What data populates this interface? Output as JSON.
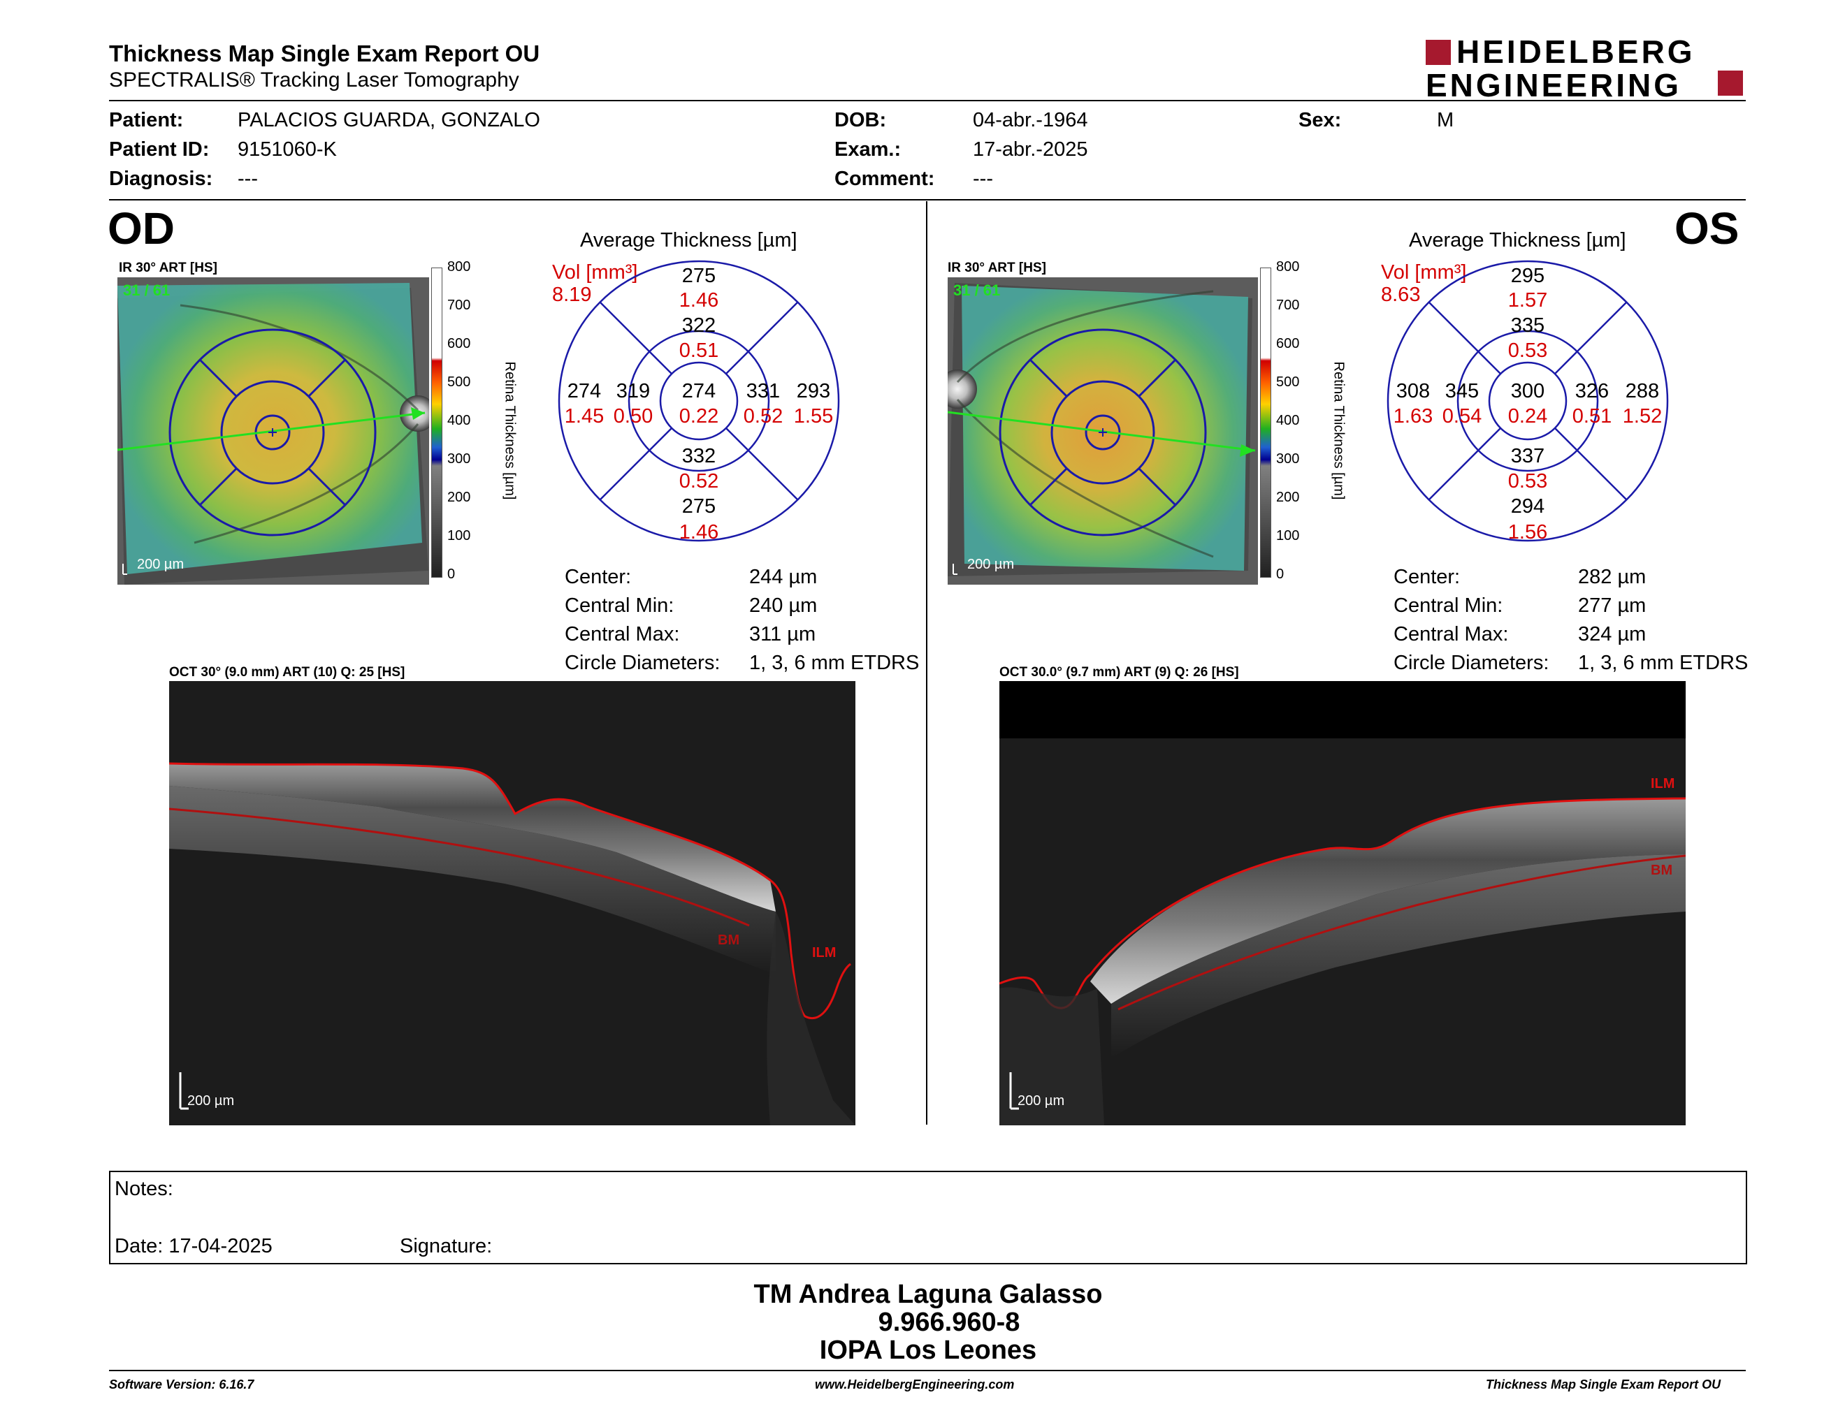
{
  "header": {
    "title": "Thickness Map Single Exam Report OU",
    "subtitle": "SPECTRALIS® Tracking Laser Tomography",
    "logo_line1": "HEIDELBERG",
    "logo_line2": "ENGINEERING",
    "logo_color": "#a6192e"
  },
  "patient": {
    "patient_label": "Patient:",
    "patient_value": "PALACIOS GUARDA, GONZALO",
    "id_label": "Patient ID:",
    "id_value": "9151060-K",
    "diagnosis_label": "Diagnosis:",
    "diagnosis_value": "---",
    "dob_label": "DOB:",
    "dob_value": "04-abr.-1964",
    "exam_label": "Exam.:",
    "exam_value": "17-abr.-2025",
    "comment_label": "Comment:",
    "comment_value": "---",
    "sex_label": "Sex:",
    "sex_value": "M"
  },
  "od": {
    "eye": "OD",
    "ir_label": "IR 30° ART [HS]",
    "frames": "31 / 61",
    "scale": "200 µm",
    "colorbar_ticks": [
      "800",
      "700",
      "600",
      "500",
      "400",
      "300",
      "200",
      "100",
      "0"
    ],
    "colorbar_title": "Retina Thickness [µm]",
    "avg_title": "Average Thickness [µm]",
    "vol_label": "Vol [mm³]",
    "vol_value": "8.19",
    "sectors": {
      "outer_top": [
        "275",
        "1.46"
      ],
      "inner_top": [
        "322",
        "0.51"
      ],
      "outer_left": [
        "274",
        "1.45"
      ],
      "inner_left": [
        "319",
        "0.50"
      ],
      "center": [
        "274",
        "0.22"
      ],
      "inner_right": [
        "331",
        "0.52"
      ],
      "outer_right": [
        "293",
        "1.55"
      ],
      "inner_bottom": [
        "332",
        "0.52"
      ],
      "outer_bottom": [
        "275",
        "1.46"
      ]
    },
    "stats": [
      {
        "label": "Center:",
        "value": "244 µm"
      },
      {
        "label": "Central Min:",
        "value": "240 µm"
      },
      {
        "label": "Central Max:",
        "value": "311 µm"
      },
      {
        "label": "Circle Diameters:",
        "value": "1, 3, 6 mm ETDRS"
      }
    ],
    "oct_label": "OCT 30° (9.0 mm) ART (10) Q: 25 [HS]",
    "oct_scale": "200 µm",
    "ilm": "ILM",
    "bm": "BM"
  },
  "os": {
    "eye": "OS",
    "ir_label": "IR 30° ART [HS]",
    "frames": "31 / 61",
    "scale": "200 µm",
    "colorbar_ticks": [
      "800",
      "700",
      "600",
      "500",
      "400",
      "300",
      "200",
      "100",
      "0"
    ],
    "colorbar_title": "Retina Thickness [µm]",
    "avg_title": "Average Thickness [µm]",
    "vol_label": "Vol [mm³]",
    "vol_value": "8.63",
    "sectors": {
      "outer_top": [
        "295",
        "1.57"
      ],
      "inner_top": [
        "335",
        "0.53"
      ],
      "outer_left": [
        "308",
        "1.63"
      ],
      "inner_left": [
        "345",
        "0.54"
      ],
      "center": [
        "300",
        "0.24"
      ],
      "inner_right": [
        "326",
        "0.51"
      ],
      "outer_right": [
        "288",
        "1.52"
      ],
      "inner_bottom": [
        "337",
        "0.53"
      ],
      "outer_bottom": [
        "294",
        "1.56"
      ]
    },
    "stats": [
      {
        "label": "Center:",
        "value": "282 µm"
      },
      {
        "label": "Central Min:",
        "value": "277 µm"
      },
      {
        "label": "Central Max:",
        "value": "324 µm"
      },
      {
        "label": "Circle Diameters:",
        "value": "1, 3, 6 mm ETDRS"
      }
    ],
    "oct_label": "OCT 30.0° (9.7 mm) ART (9) Q: 26 [HS]",
    "oct_scale": "200 µm",
    "ilm": "ILM",
    "bm": "BM"
  },
  "notes": {
    "notes_label": "Notes:",
    "date_label": "Date: 17-04-2025",
    "signature_label": "Signature:"
  },
  "signer": {
    "name": "TM Andrea Laguna Galasso",
    "rut": "9.966.960-8",
    "institution": "IOPA Los Leones"
  },
  "footer": {
    "software": "Software Version: 6.16.7",
    "website": "www.HeidelbergEngineering.com",
    "report": "Thickness Map Single Exam Report OU"
  }
}
